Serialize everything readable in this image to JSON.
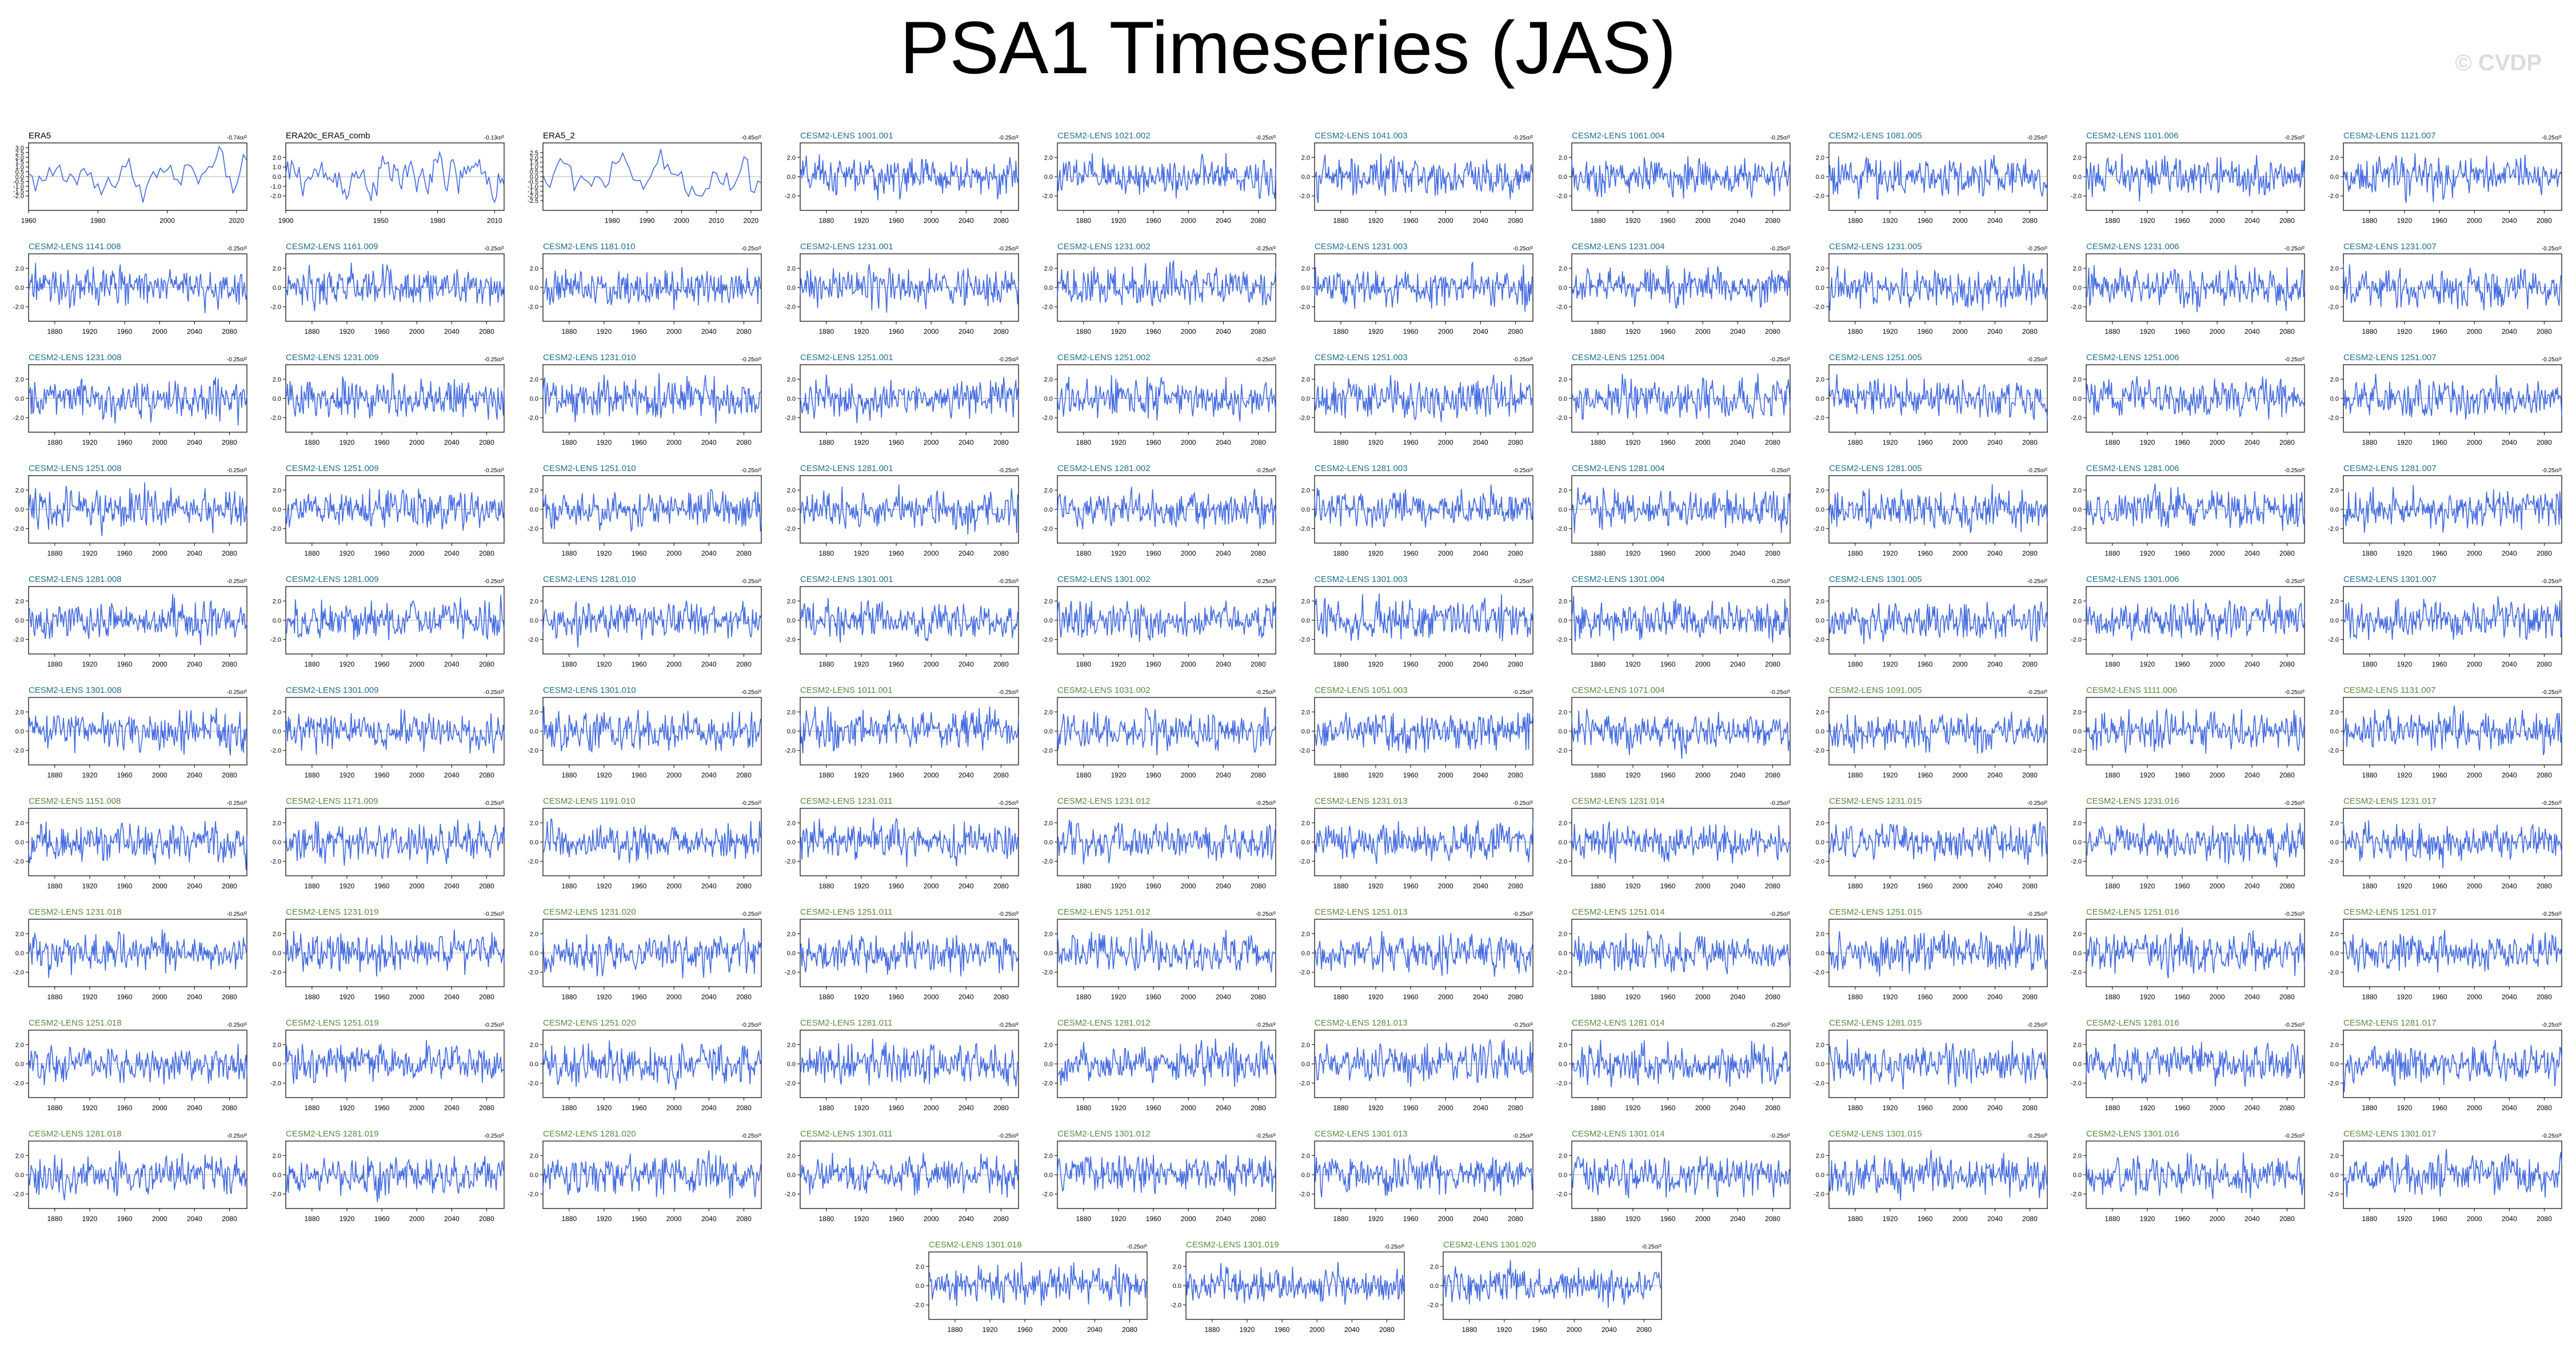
{
  "title": "PSA1 Timeseries (JAS)",
  "watermark": "© CVDP",
  "colors": {
    "line": "#4169e1",
    "obs_label": "#000000",
    "lens1_label": "#1d6f8f",
    "lens2_label": "#5a8a3c",
    "bg": "#ffffff"
  },
  "chart_data": {
    "type": "line",
    "layout": "grid of 10 columns x 11 rows (last row centered, 3 panels)",
    "panels": [
      {
        "label": "ERA5",
        "trend": "-0.74σ/²",
        "years": [
          1960,
          2023
        ],
        "xticks": [
          1960,
          1980,
          2000,
          2020
        ],
        "yticks": [
          -2.0,
          -1.5,
          -1.0,
          -0.5,
          0.0,
          0.5,
          1.0,
          1.5,
          2.0,
          2.5,
          3.0
        ],
        "group": "obs"
      },
      {
        "label": "ERA20c_ERA5_comb",
        "trend": "-0.13σ/²",
        "years": [
          1900,
          2015
        ],
        "xticks": [
          1900,
          1950,
          1980,
          2010
        ],
        "yticks": [
          -2.0,
          -1.0,
          0.0,
          1.0,
          2.0
        ],
        "group": "obs"
      },
      {
        "label": "ERA5_2",
        "trend": "-0.45σ/²",
        "years": [
          1960,
          2023
        ],
        "xticks": [
          1980,
          1990,
          2000,
          2010,
          2020
        ],
        "yticks": [
          -2.5,
          -2.0,
          -1.5,
          -1.0,
          -0.5,
          0.0,
          0.5,
          1.0,
          1.5,
          2.0,
          2.5
        ],
        "group": "obs"
      },
      {
        "label": "CESM2-LENS 1001.001",
        "trend": "-0.25σ/²",
        "group": "lens1"
      },
      {
        "label": "CESM2-LENS 1021.002",
        "trend": "-0.25σ/²",
        "group": "lens1"
      },
      {
        "label": "CESM2-LENS 1041.003",
        "trend": "-0.25σ/²",
        "group": "lens1"
      },
      {
        "label": "CESM2-LENS 1061.004",
        "trend": "-0.25σ/²",
        "group": "lens1"
      },
      {
        "label": "CESM2-LENS 1081.005",
        "trend": "-0.25σ/²",
        "group": "lens1"
      },
      {
        "label": "CESM2-LENS 1101.006",
        "trend": "-0.25σ/²",
        "group": "lens1"
      },
      {
        "label": "CESM2-LENS 1121.007",
        "trend": "-0.25σ/²",
        "group": "lens1"
      },
      {
        "label": "CESM2-LENS 1141.008",
        "trend": "-0.25σ/²",
        "group": "lens1"
      },
      {
        "label": "CESM2-LENS 1161.009",
        "trend": "-0.25σ/²",
        "group": "lens1"
      },
      {
        "label": "CESM2-LENS 1181.010",
        "trend": "-0.25σ/²",
        "group": "lens1"
      },
      {
        "label": "CESM2-LENS 1231.001",
        "trend": "-0.25σ/²",
        "group": "lens1"
      },
      {
        "label": "CESM2-LENS 1231.002",
        "trend": "-0.25σ/²",
        "group": "lens1"
      },
      {
        "label": "CESM2-LENS 1231.003",
        "trend": "-0.25σ/²",
        "group": "lens1"
      },
      {
        "label": "CESM2-LENS 1231.004",
        "trend": "-0.25σ/²",
        "group": "lens1"
      },
      {
        "label": "CESM2-LENS 1231.005",
        "trend": "-0.25σ/²",
        "group": "lens1"
      },
      {
        "label": "CESM2-LENS 1231.006",
        "trend": "-0.25σ/²",
        "group": "lens1"
      },
      {
        "label": "CESM2-LENS 1231.007",
        "trend": "-0.25σ/²",
        "group": "lens1"
      },
      {
        "label": "CESM2-LENS 1231.008",
        "trend": "-0.25σ/²",
        "group": "lens1"
      },
      {
        "label": "CESM2-LENS 1231.009",
        "trend": "-0.25σ/²",
        "group": "lens1"
      },
      {
        "label": "CESM2-LENS 1231.010",
        "trend": "-0.25σ/²",
        "group": "lens1"
      },
      {
        "label": "CESM2-LENS 1251.001",
        "trend": "-0.25σ/²",
        "group": "lens1"
      },
      {
        "label": "CESM2-LENS 1251.002",
        "trend": "-0.25σ/²",
        "group": "lens1"
      },
      {
        "label": "CESM2-LENS 1251.003",
        "trend": "-0.25σ/²",
        "group": "lens1"
      },
      {
        "label": "CESM2-LENS 1251.004",
        "trend": "-0.25σ/²",
        "group": "lens1"
      },
      {
        "label": "CESM2-LENS 1251.005",
        "trend": "-0.25σ/²",
        "group": "lens1"
      },
      {
        "label": "CESM2-LENS 1251.006",
        "trend": "-0.25σ/²",
        "group": "lens1"
      },
      {
        "label": "CESM2-LENS 1251.007",
        "trend": "-0.25σ/²",
        "group": "lens1"
      },
      {
        "label": "CESM2-LENS 1251.008",
        "trend": "-0.25σ/²",
        "group": "lens1"
      },
      {
        "label": "CESM2-LENS 1251.009",
        "trend": "-0.25σ/²",
        "group": "lens1"
      },
      {
        "label": "CESM2-LENS 1251.010",
        "trend": "-0.25σ/²",
        "group": "lens1"
      },
      {
        "label": "CESM2-LENS 1281.001",
        "trend": "-0.25σ/²",
        "group": "lens1"
      },
      {
        "label": "CESM2-LENS 1281.002",
        "trend": "-0.25σ/²",
        "group": "lens1"
      },
      {
        "label": "CESM2-LENS 1281.003",
        "trend": "-0.25σ/²",
        "group": "lens1"
      },
      {
        "label": "CESM2-LENS 1281.004",
        "trend": "-0.25σ/²",
        "group": "lens1"
      },
      {
        "label": "CESM2-LENS 1281.005",
        "trend": "-0.25σ/²",
        "group": "lens1"
      },
      {
        "label": "CESM2-LENS 1281.006",
        "trend": "-0.25σ/²",
        "group": "lens1"
      },
      {
        "label": "CESM2-LENS 1281.007",
        "trend": "-0.25σ/²",
        "group": "lens1"
      },
      {
        "label": "CESM2-LENS 1281.008",
        "trend": "-0.25σ/²",
        "group": "lens1"
      },
      {
        "label": "CESM2-LENS 1281.009",
        "trend": "-0.25σ/²",
        "group": "lens1"
      },
      {
        "label": "CESM2-LENS 1281.010",
        "trend": "-0.25σ/²",
        "group": "lens1"
      },
      {
        "label": "CESM2-LENS 1301.001",
        "trend": "-0.25σ/²",
        "group": "lens1"
      },
      {
        "label": "CESM2-LENS 1301.002",
        "trend": "-0.25σ/²",
        "group": "lens1"
      },
      {
        "label": "CESM2-LENS 1301.003",
        "trend": "-0.25σ/²",
        "group": "lens1"
      },
      {
        "label": "CESM2-LENS 1301.004",
        "trend": "-0.25σ/²",
        "group": "lens1"
      },
      {
        "label": "CESM2-LENS 1301.005",
        "trend": "-0.25σ/²",
        "group": "lens1"
      },
      {
        "label": "CESM2-LENS 1301.006",
        "trend": "-0.25σ/²",
        "group": "lens1"
      },
      {
        "label": "CESM2-LENS 1301.007",
        "trend": "-0.25σ/²",
        "group": "lens1"
      },
      {
        "label": "CESM2-LENS 1301.008",
        "trend": "-0.25σ/²",
        "group": "lens1"
      },
      {
        "label": "CESM2-LENS 1301.009",
        "trend": "-0.25σ/²",
        "group": "lens1"
      },
      {
        "label": "CESM2-LENS 1301.010",
        "trend": "-0.25σ/²",
        "group": "lens1"
      },
      {
        "label": "CESM2-LENS 1011.001",
        "trend": "-0.25σ/²",
        "group": "lens2"
      },
      {
        "label": "CESM2-LENS 1031.002",
        "trend": "-0.25σ/²",
        "group": "lens2"
      },
      {
        "label": "CESM2-LENS 1051.003",
        "trend": "-0.25σ/²",
        "group": "lens2"
      },
      {
        "label": "CESM2-LENS 1071.004",
        "trend": "-0.25σ/²",
        "group": "lens2"
      },
      {
        "label": "CESM2-LENS 1091.005",
        "trend": "-0.25σ/²",
        "group": "lens2"
      },
      {
        "label": "CESM2-LENS 1111.006",
        "trend": "-0.25σ/²",
        "group": "lens2"
      },
      {
        "label": "CESM2-LENS 1131.007",
        "trend": "-0.25σ/²",
        "group": "lens2"
      },
      {
        "label": "CESM2-LENS 1151.008",
        "trend": "-0.25σ/²",
        "group": "lens2"
      },
      {
        "label": "CESM2-LENS 1171.009",
        "trend": "-0.25σ/²",
        "group": "lens2"
      },
      {
        "label": "CESM2-LENS 1191.010",
        "trend": "-0.25σ/²",
        "group": "lens2"
      },
      {
        "label": "CESM2-LENS 1231.011",
        "trend": "-0.25σ/²",
        "group": "lens2"
      },
      {
        "label": "CESM2-LENS 1231.012",
        "trend": "-0.25σ/²",
        "group": "lens2"
      },
      {
        "label": "CESM2-LENS 1231.013",
        "trend": "-0.25σ/²",
        "group": "lens2"
      },
      {
        "label": "CESM2-LENS 1231.014",
        "trend": "-0.25σ/²",
        "group": "lens2"
      },
      {
        "label": "CESM2-LENS 1231.015",
        "trend": "-0.25σ/²",
        "group": "lens2"
      },
      {
        "label": "CESM2-LENS 1231.016",
        "trend": "-0.25σ/²",
        "group": "lens2"
      },
      {
        "label": "CESM2-LENS 1231.017",
        "trend": "-0.25σ/²",
        "group": "lens2"
      },
      {
        "label": "CESM2-LENS 1231.018",
        "trend": "-0.25σ/²",
        "group": "lens2"
      },
      {
        "label": "CESM2-LENS 1231.019",
        "trend": "-0.25σ/²",
        "group": "lens2"
      },
      {
        "label": "CESM2-LENS 1231.020",
        "trend": "-0.25σ/²",
        "group": "lens2"
      },
      {
        "label": "CESM2-LENS 1251.011",
        "trend": "-0.25σ/²",
        "group": "lens2"
      },
      {
        "label": "CESM2-LENS 1251.012",
        "trend": "-0.25σ/²",
        "group": "lens2"
      },
      {
        "label": "CESM2-LENS 1251.013",
        "trend": "-0.25σ/²",
        "group": "lens2"
      },
      {
        "label": "CESM2-LENS 1251.014",
        "trend": "-0.25σ/²",
        "group": "lens2"
      },
      {
        "label": "CESM2-LENS 1251.015",
        "trend": "-0.25σ/²",
        "group": "lens2"
      },
      {
        "label": "CESM2-LENS 1251.016",
        "trend": "-0.25σ/²",
        "group": "lens2"
      },
      {
        "label": "CESM2-LENS 1251.017",
        "trend": "-0.25σ/²",
        "group": "lens2"
      },
      {
        "label": "CESM2-LENS 1251.018",
        "trend": "-0.25σ/²",
        "group": "lens2"
      },
      {
        "label": "CESM2-LENS 1251.019",
        "trend": "-0.25σ/²",
        "group": "lens2"
      },
      {
        "label": "CESM2-LENS 1251.020",
        "trend": "-0.25σ/²",
        "group": "lens2"
      },
      {
        "label": "CESM2-LENS 1281.011",
        "trend": "-0.25σ/²",
        "group": "lens2"
      },
      {
        "label": "CESM2-LENS 1281.012",
        "trend": "-0.25σ/²",
        "group": "lens2"
      },
      {
        "label": "CESM2-LENS 1281.013",
        "trend": "-0.25σ/²",
        "group": "lens2"
      },
      {
        "label": "CESM2-LENS 1281.014",
        "trend": "-0.25σ/²",
        "group": "lens2"
      },
      {
        "label": "CESM2-LENS 1281.015",
        "trend": "-0.25σ/²",
        "group": "lens2"
      },
      {
        "label": "CESM2-LENS 1281.016",
        "trend": "-0.25σ/²",
        "group": "lens2"
      },
      {
        "label": "CESM2-LENS 1281.017",
        "trend": "-0.25σ/²",
        "group": "lens2"
      },
      {
        "label": "CESM2-LENS 1281.018",
        "trend": "-0.25σ/²",
        "group": "lens2"
      },
      {
        "label": "CESM2-LENS 1281.019",
        "trend": "-0.25σ/²",
        "group": "lens2"
      },
      {
        "label": "CESM2-LENS 1281.020",
        "trend": "-0.25σ/²",
        "group": "lens2"
      },
      {
        "label": "CESM2-LENS 1301.011",
        "trend": "-0.25σ/²",
        "group": "lens2"
      },
      {
        "label": "CESM2-LENS 1301.012",
        "trend": "-0.25σ/²",
        "group": "lens2"
      },
      {
        "label": "CESM2-LENS 1301.013",
        "trend": "-0.25σ/²",
        "group": "lens2"
      },
      {
        "label": "CESM2-LENS 1301.014",
        "trend": "-0.25σ/²",
        "group": "lens2"
      },
      {
        "label": "CESM2-LENS 1301.015",
        "trend": "-0.25σ/²",
        "group": "lens2"
      },
      {
        "label": "CESM2-LENS 1301.016",
        "trend": "-0.25σ/²",
        "group": "lens2"
      },
      {
        "label": "CESM2-LENS 1301.017",
        "trend": "-0.25σ/²",
        "group": "lens2"
      },
      {
        "label": "CESM2-LENS 1301.018",
        "trend": "-0.25σ/²",
        "group": "lens2"
      },
      {
        "label": "CESM2-LENS 1301.019",
        "trend": "-0.25σ/²",
        "group": "lens2"
      },
      {
        "label": "CESM2-LENS 1301.020",
        "trend": "-0.25σ/²",
        "group": "lens2"
      }
    ],
    "model_defaults": {
      "years": [
        1850,
        2100
      ],
      "xticks": [
        1880,
        1920,
        1960,
        2000,
        2040,
        2080
      ],
      "yticks": [
        -2.0,
        0.0,
        2.0
      ],
      "ylim": [
        -3.5,
        3.5
      ]
    }
  }
}
